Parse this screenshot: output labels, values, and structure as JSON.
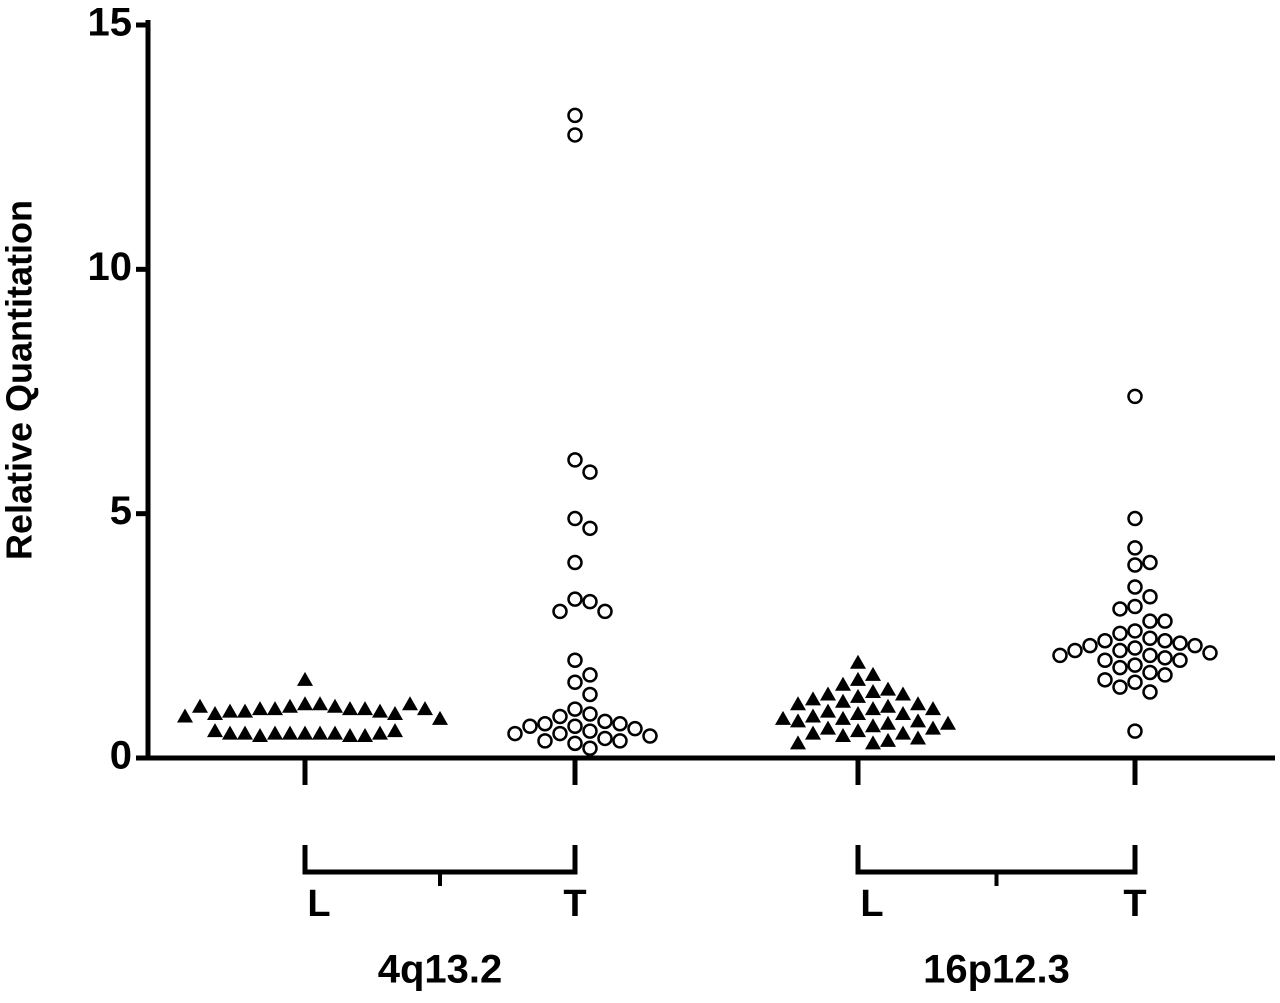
{
  "chart_data": {
    "type": "dot",
    "y_label": "Relative Quantitation",
    "categories": [
      "L",
      "T",
      "L",
      "T"
    ],
    "groups": [
      "4q13.2",
      "16p12.3"
    ],
    "markers": [
      "triangle",
      "circle",
      "triangle",
      "circle"
    ],
    "color": "#000000",
    "values": [
      [
        1.6,
        1.1,
        1.1,
        1.05,
        1.05,
        1.0,
        1.0,
        1.0,
        1.0,
        0.95,
        0.95,
        0.95,
        0.9,
        0.9,
        1.1,
        1.05,
        1.0,
        0.85,
        0.8,
        0.5,
        0.5,
        0.5,
        0.5,
        0.5,
        0.45,
        0.45,
        0.45,
        0.5,
        0.5,
        0.5,
        0.55,
        0.55
      ],
      [
        13.15,
        12.75,
        6.1,
        5.85,
        4.9,
        4.7,
        4.0,
        3.25,
        3.2,
        3.0,
        3.0,
        2.0,
        1.7,
        1.55,
        1.3,
        1.0,
        0.9,
        0.85,
        0.75,
        0.7,
        0.7,
        0.65,
        0.65,
        0.6,
        0.55,
        0.5,
        0.5,
        0.45,
        0.4,
        0.35,
        0.35,
        0.3,
        0.2
      ],
      [
        1.95,
        1.7,
        1.6,
        1.5,
        1.4,
        1.35,
        1.3,
        1.3,
        1.25,
        1.2,
        1.15,
        1.1,
        1.1,
        1.05,
        1.0,
        1.0,
        0.95,
        0.9,
        0.9,
        0.85,
        0.8,
        0.8,
        0.75,
        0.75,
        0.7,
        0.7,
        0.65,
        0.6,
        0.6,
        0.55,
        0.5,
        0.5,
        0.45,
        0.4,
        0.35,
        0.3,
        0.3
      ],
      [
        7.4,
        4.9,
        4.3,
        4.0,
        3.95,
        3.5,
        3.3,
        3.1,
        3.05,
        2.8,
        2.8,
        2.6,
        2.55,
        2.45,
        2.4,
        2.4,
        2.35,
        2.3,
        2.3,
        2.25,
        2.2,
        2.2,
        2.15,
        2.1,
        2.1,
        2.05,
        2.0,
        2.0,
        1.9,
        1.85,
        1.75,
        1.7,
        1.6,
        1.55,
        1.45,
        1.35,
        0.55
      ]
    ],
    "ylim": [
      0,
      15
    ],
    "yticks": [
      0,
      5,
      10,
      15
    ]
  }
}
